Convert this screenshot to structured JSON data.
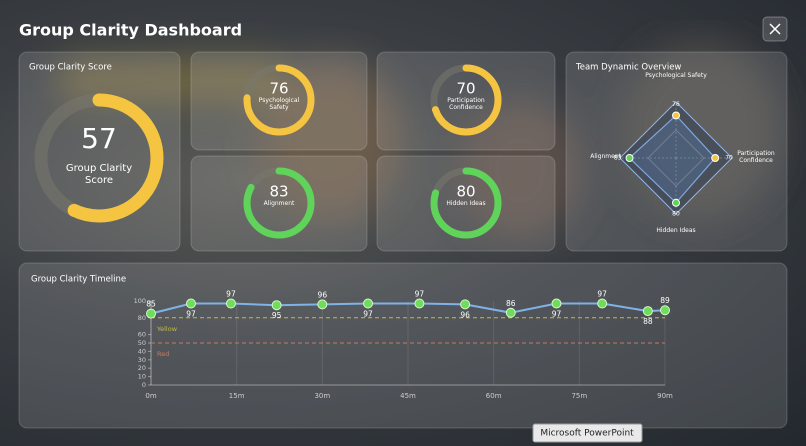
{
  "header": {
    "title": "Group Clarity Dashboard"
  },
  "score": {
    "title": "Group Clarity Score",
    "value": 57,
    "label": "Group Clarity Score",
    "range": [
      0,
      100
    ],
    "color": "#f5c542"
  },
  "metrics": [
    {
      "label": "Psychological Safety",
      "value": 76,
      "color": "#f5c542",
      "range": [
        0,
        100
      ]
    },
    {
      "label": "Participation Confidence",
      "value": 70,
      "color": "#f5c542",
      "range": [
        0,
        100
      ]
    },
    {
      "label": "Alignment",
      "value": 83,
      "color": "#5fd35a",
      "range": [
        0,
        100
      ]
    },
    {
      "label": "Hidden Ideas",
      "value": 80,
      "color": "#5fd35a",
      "range": [
        0,
        100
      ]
    }
  ],
  "radar": {
    "title": "Team Dynamic Overview",
    "rlim": [
      0,
      100
    ],
    "axes": [
      {
        "label": "Psychological Safety",
        "value": 76,
        "color": "#f5c542"
      },
      {
        "label": "Participation Confidence",
        "value": 70,
        "color": "#f5c542"
      },
      {
        "label": "Hidden Ideas",
        "value": 80,
        "color": "#5fd35a"
      },
      {
        "label": "Alignment",
        "value": 83,
        "color": "#5fd35a"
      }
    ]
  },
  "chart_data": {
    "type": "line",
    "title": "Group Clarity Timeline",
    "x": [
      0,
      7,
      14,
      22,
      30,
      38,
      47,
      55,
      63,
      71,
      79,
      87,
      90
    ],
    "values": [
      85,
      97,
      97,
      95,
      96,
      97,
      97,
      96,
      86,
      97,
      97,
      88,
      89
    ],
    "color": "#7fb3e8",
    "point_color": "#6fdc5a",
    "xlim": [
      0,
      90
    ],
    "xticks": [
      {
        "value": 0,
        "label": "0m"
      },
      {
        "value": 15,
        "label": "15m"
      },
      {
        "value": 30,
        "label": "30m"
      },
      {
        "value": 45,
        "label": "45m"
      },
      {
        "value": 60,
        "label": "60m"
      },
      {
        "value": 75,
        "label": "75m"
      },
      {
        "value": 90,
        "label": "90m"
      }
    ],
    "ylim": [
      0,
      100
    ],
    "yticks": [
      0,
      10,
      20,
      30,
      40,
      50,
      60,
      80,
      100
    ],
    "thresholds": [
      {
        "label": "Yellow",
        "value": 80,
        "color": "#c9b84a"
      },
      {
        "label": "Red",
        "value": 50,
        "color": "#c97a5a"
      }
    ]
  },
  "tooltip": "Microsoft PowerPoint"
}
